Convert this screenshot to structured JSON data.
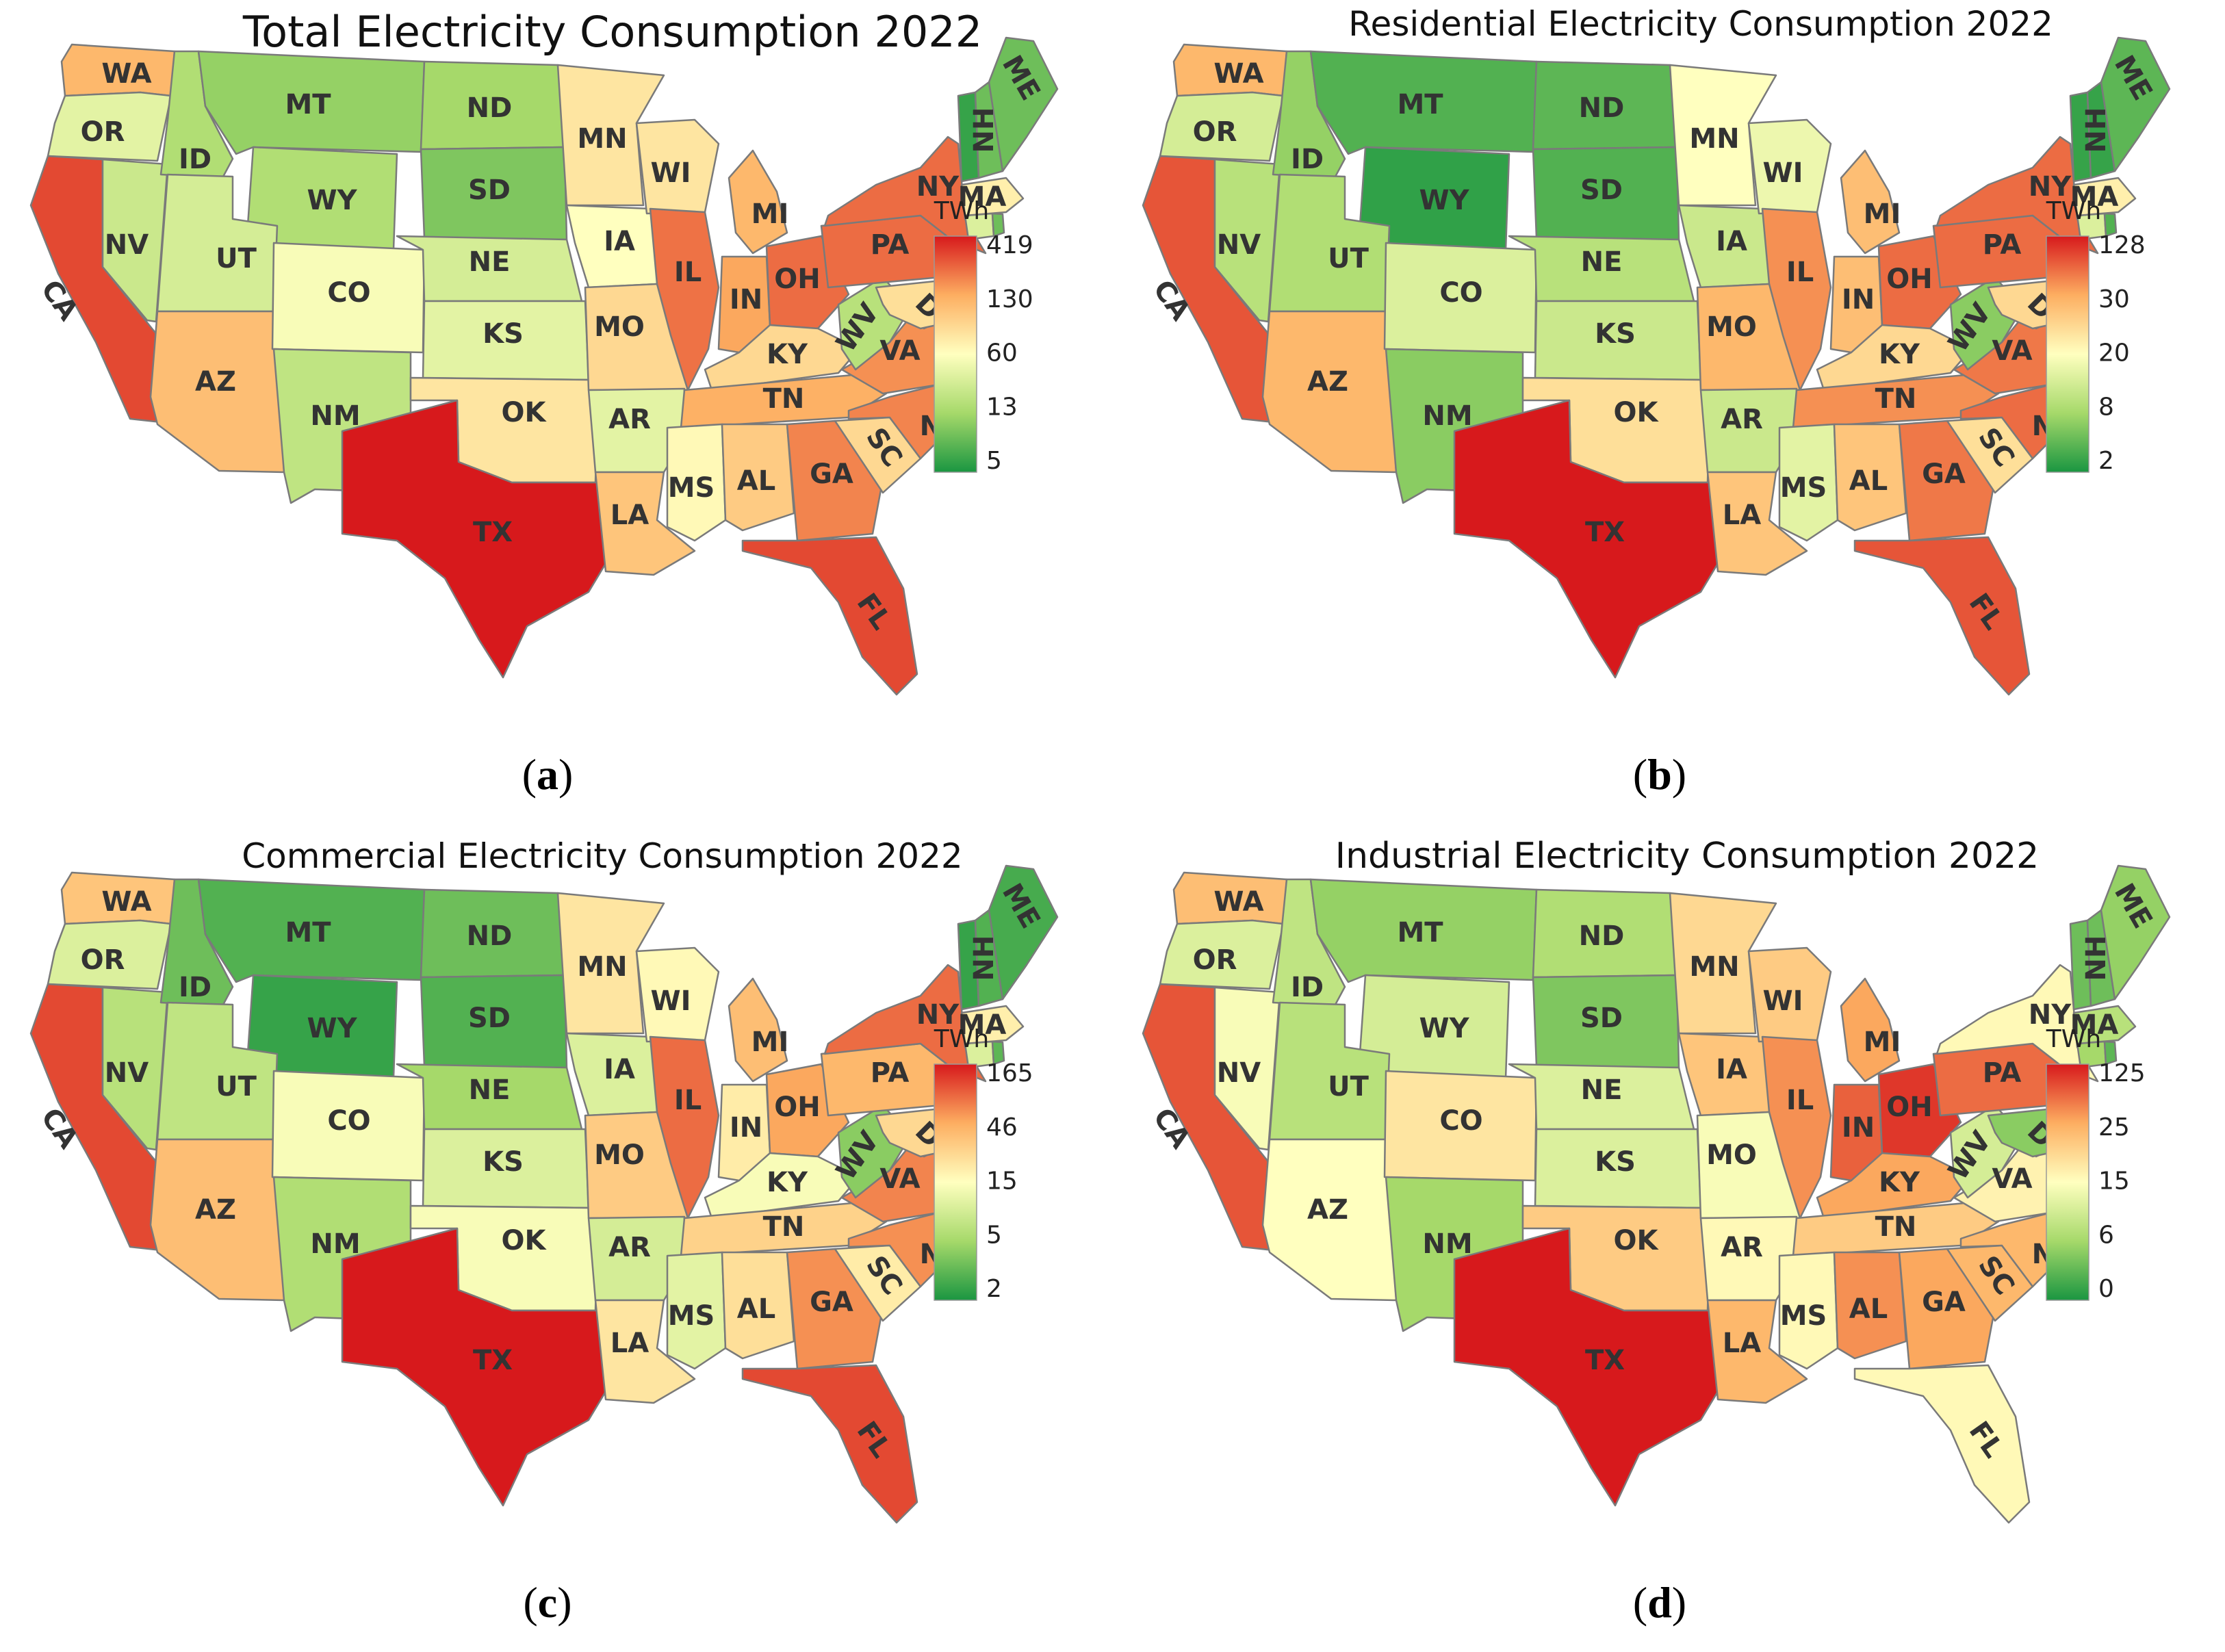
{
  "colors": {
    "scale": [
      "#1a9641",
      "#a6d96a",
      "#ffffbf",
      "#fdae61",
      "#d7191c"
    ],
    "state_border": "#7a7a7a",
    "label": "#333333"
  },
  "maps": [
    {
      "title": "Total Electricity Consumption 2022",
      "caption_letter": "a",
      "legend": {
        "unit": "TWh",
        "ticks": [
          "419",
          "130",
          "60",
          "13",
          "5"
        ]
      },
      "states": {
        "WA": 0.72,
        "OR": 0.42,
        "CA": 0.92,
        "NV": 0.35,
        "ID": 0.28,
        "MT": 0.22,
        "WY": 0.28,
        "UT": 0.38,
        "AZ": 0.7,
        "CO": 0.48,
        "NM": 0.32,
        "ND": 0.25,
        "SD": 0.18,
        "NE": 0.38,
        "KS": 0.42,
        "OK": 0.58,
        "TX": 1.0,
        "MN": 0.58,
        "IA": 0.5,
        "MO": 0.62,
        "AR": 0.42,
        "LA": 0.68,
        "WI": 0.58,
        "IL": 0.85,
        "MI": 0.72,
        "IN": 0.76,
        "OH": 0.86,
        "KY": 0.62,
        "TN": 0.74,
        "MS": 0.52,
        "AL": 0.66,
        "GA": 0.82,
        "FL": 0.92,
        "SC": 0.62,
        "NC": 0.82,
        "VA": 0.8,
        "WV": 0.3,
        "PA": 0.86,
        "NY": 0.86,
        "NJ": 0.66,
        "DC": 0.15,
        "MD": 0.6,
        "DE": 0.2,
        "CT": 0.4,
        "RI": 0.15,
        "MA": 0.55,
        "VT": 0.05,
        "NH": 0.15,
        "ME": 0.15
      }
    },
    {
      "title": "Residential Electricity Consumption 2022",
      "caption_letter": "b",
      "legend": {
        "unit": "TWh",
        "ticks": [
          "128",
          "30",
          "20",
          "8",
          "2"
        ]
      },
      "states": {
        "WA": 0.72,
        "OR": 0.38,
        "CA": 0.9,
        "NV": 0.3,
        "ID": 0.22,
        "MT": 0.1,
        "WY": 0.04,
        "UT": 0.28,
        "AZ": 0.72,
        "CO": 0.4,
        "NM": 0.2,
        "ND": 0.12,
        "SD": 0.1,
        "NE": 0.3,
        "KS": 0.35,
        "OK": 0.6,
        "TX": 1.0,
        "MN": 0.5,
        "IA": 0.35,
        "MO": 0.72,
        "AR": 0.35,
        "LA": 0.68,
        "WI": 0.45,
        "IL": 0.8,
        "MI": 0.7,
        "IN": 0.7,
        "OH": 0.86,
        "KY": 0.62,
        "TN": 0.8,
        "MS": 0.42,
        "AL": 0.68,
        "GA": 0.84,
        "FL": 0.9,
        "SC": 0.6,
        "NC": 0.86,
        "VA": 0.84,
        "WV": 0.2,
        "PA": 0.86,
        "NY": 0.86,
        "NJ": 0.64,
        "DC": 0.1,
        "MD": 0.62,
        "DE": 0.15,
        "CT": 0.4,
        "RI": 0.1,
        "MA": 0.55,
        "VT": 0.05,
        "NH": 0.05,
        "ME": 0.12
      }
    },
    {
      "title": "Commercial Electricity Consumption 2022",
      "caption_letter": "c",
      "legend": {
        "unit": "TWh",
        "ticks": [
          "165",
          "46",
          "15",
          "5",
          "2"
        ]
      },
      "states": {
        "WA": 0.68,
        "OR": 0.4,
        "CA": 0.92,
        "NV": 0.3,
        "ID": 0.15,
        "MT": 0.1,
        "WY": 0.05,
        "UT": 0.32,
        "AZ": 0.7,
        "CO": 0.48,
        "NM": 0.28,
        "ND": 0.15,
        "SD": 0.1,
        "NE": 0.25,
        "KS": 0.4,
        "OK": 0.48,
        "TX": 1.0,
        "MN": 0.58,
        "IA": 0.4,
        "MO": 0.66,
        "AR": 0.38,
        "LA": 0.58,
        "WI": 0.52,
        "IL": 0.86,
        "MI": 0.7,
        "IN": 0.56,
        "OH": 0.76,
        "KY": 0.48,
        "TN": 0.64,
        "MS": 0.42,
        "AL": 0.6,
        "GA": 0.8,
        "FL": 0.92,
        "SC": 0.56,
        "NC": 0.8,
        "VA": 0.82,
        "WV": 0.2,
        "PA": 0.72,
        "NY": 0.86,
        "NJ": 0.66,
        "DC": 0.12,
        "MD": 0.62,
        "DE": 0.15,
        "CT": 0.4,
        "RI": 0.12,
        "MA": 0.55,
        "VT": 0.05,
        "NH": 0.1,
        "ME": 0.08
      }
    },
    {
      "title": "Industrial Electricity Consumption 2022",
      "caption_letter": "d",
      "legend": {
        "unit": "TWh",
        "ticks": [
          "125",
          "25",
          "15",
          "6",
          "0"
        ]
      },
      "states": {
        "WA": 0.7,
        "OR": 0.4,
        "CA": 0.9,
        "NV": 0.48,
        "ID": 0.32,
        "MT": 0.22,
        "WY": 0.38,
        "UT": 0.3,
        "AZ": 0.5,
        "CO": 0.58,
        "NM": 0.25,
        "ND": 0.28,
        "SD": 0.18,
        "NE": 0.4,
        "KS": 0.4,
        "OK": 0.66,
        "TX": 1.0,
        "MN": 0.62,
        "IA": 0.68,
        "MO": 0.48,
        "AR": 0.52,
        "LA": 0.72,
        "WI": 0.66,
        "IL": 0.8,
        "MI": 0.76,
        "IN": 0.88,
        "OH": 0.95,
        "KY": 0.76,
        "TN": 0.66,
        "MS": 0.52,
        "AL": 0.8,
        "GA": 0.76,
        "FL": 0.52,
        "SC": 0.72,
        "NC": 0.72,
        "VA": 0.54,
        "WV": 0.38,
        "PA": 0.86,
        "NY": 0.52,
        "NJ": 0.36,
        "DC": 0.1,
        "MD": 0.2,
        "DE": 0.2,
        "CT": 0.25,
        "RI": 0.12,
        "MA": 0.3,
        "VT": 0.15,
        "NH": 0.15,
        "ME": 0.22
      }
    }
  ]
}
